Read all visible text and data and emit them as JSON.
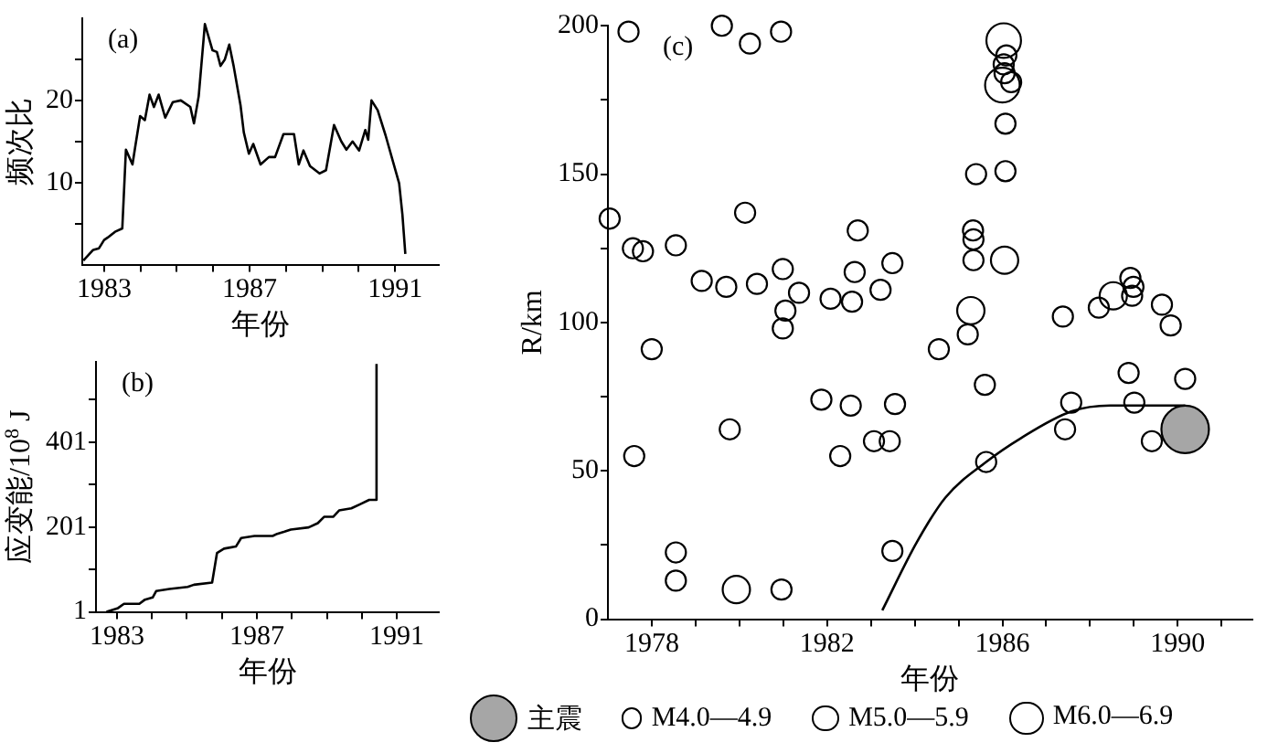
{
  "chart_data": [
    {
      "type": "line",
      "title": "(a)",
      "xlabel": "年份",
      "ylabel": "频次比",
      "grid": false,
      "xlim": [
        1982.4,
        1992.2
      ],
      "xticks": [
        1983,
        {
          "value": 1984,
          "label": null
        },
        {
          "value": 1985,
          "label": null
        },
        {
          "value": 1986,
          "label": null
        },
        1987,
        {
          "value": 1988,
          "label": null
        },
        {
          "value": 1989,
          "label": null
        },
        {
          "value": 1990,
          "label": null
        },
        1991
      ],
      "ylim": [
        0,
        30
      ],
      "yticks": [
        {
          "value": 5,
          "label": null
        },
        10,
        {
          "value": 15,
          "label": null
        },
        20,
        {
          "value": 25,
          "label": null
        }
      ],
      "series": [
        {
          "color": "#000000",
          "x": [
            1982.43,
            1982.7,
            1982.86,
            1983.0,
            1983.1,
            1983.3,
            1983.5,
            1983.6,
            1983.78,
            1983.85,
            1983.99,
            1984.12,
            1984.25,
            1984.37,
            1984.5,
            1984.68,
            1984.89,
            1985.11,
            1985.37,
            1985.47,
            1985.6,
            1985.77,
            1985.98,
            1986.1,
            1986.2,
            1986.32,
            1986.44,
            1986.56,
            1986.75,
            1986.84,
            1986.98,
            1987.1,
            1987.3,
            1987.53,
            1987.7,
            1987.93,
            1988.22,
            1988.35,
            1988.48,
            1988.66,
            1988.92,
            1989.1,
            1989.32,
            1989.52,
            1989.66,
            1989.83,
            1990.01,
            1990.18,
            1990.26,
            1990.35,
            1990.52,
            1990.74,
            1990.95,
            1991.11,
            1991.2,
            1991.28
          ],
          "values": [
            0.5,
            1.8,
            2,
            3,
            3.3,
            4,
            4.4,
            14,
            12.2,
            14.2,
            18.1,
            17.6,
            20.7,
            19.2,
            20.7,
            17.9,
            19.8,
            20,
            19.2,
            17.2,
            20.5,
            29.3,
            26.1,
            25.9,
            24.2,
            25,
            26.8,
            24.2,
            19.4,
            16.1,
            13.5,
            14.7,
            12.2,
            13.1,
            13.1,
            15.9,
            15.9,
            12.2,
            13.9,
            12,
            11.1,
            11.5,
            17,
            15,
            14,
            15,
            13.9,
            16.4,
            15.2,
            20,
            18.8,
            15.7,
            12.4,
            9.9,
            6.1,
            1.3
          ]
        }
      ]
    },
    {
      "type": "line",
      "title": "(b)",
      "xlabel": "年份",
      "ylabel": "应变能/10$^{8}$ J",
      "grid": false,
      "xlim": [
        1982.4,
        1992.2
      ],
      "xticks": [
        1983,
        {
          "value": 1984,
          "label": null
        },
        {
          "value": 1985,
          "label": null
        },
        {
          "value": 1986,
          "label": null
        },
        1987,
        {
          "value": 1988,
          "label": null
        },
        {
          "value": 1989,
          "label": null
        },
        {
          "value": 1990,
          "label": null
        },
        1991
      ],
      "ylim": [
        1,
        590
      ],
      "yticks": [
        1,
        {
          "value": 101,
          "label": null
        },
        201,
        {
          "value": 301,
          "label": null
        },
        401,
        {
          "value": 501,
          "label": null
        }
      ],
      "series": [
        {
          "color": "#000000",
          "x": [
            1982.7,
            1983.03,
            1983.2,
            1983.3,
            1983.64,
            1983.8,
            1984.02,
            1984.12,
            1984.5,
            1985.02,
            1985.2,
            1985.72,
            1985.86,
            1986.06,
            1986.4,
            1986.55,
            1986.93,
            1987.45,
            1987.58,
            1987.79,
            1987.97,
            1988.48,
            1988.74,
            1988.92,
            1989.18,
            1989.35,
            1989.7,
            1989.96,
            1990.21,
            1990.39,
            1990.42
          ],
          "values": [
            1,
            10,
            20,
            20,
            20,
            30,
            35,
            50,
            55,
            60,
            65,
            70,
            140,
            150,
            155,
            175,
            180,
            180,
            185,
            190,
            195,
            200,
            210,
            225,
            225,
            240,
            245,
            255,
            265,
            265,
            585
          ]
        }
      ]
    },
    {
      "type": "bubble",
      "title": "(c)",
      "xlabel": "年份",
      "ylabel": "R/km",
      "grid": false,
      "legend": "bottom",
      "xlim": [
        1977,
        1991.7
      ],
      "xticks": [
        1978,
        {
          "value": 1979,
          "label": null
        },
        {
          "value": 1980,
          "label": null
        },
        {
          "value": 1981,
          "label": null
        },
        1982,
        {
          "value": 1983,
          "label": null
        },
        {
          "value": 1984,
          "label": null
        },
        {
          "value": 1985,
          "label": null
        },
        1986,
        {
          "value": 1987,
          "label": null
        },
        {
          "value": 1988,
          "label": null
        },
        {
          "value": 1989,
          "label": null
        },
        1990,
        {
          "value": 1991,
          "label": null
        }
      ],
      "ylim": [
        0,
        200
      ],
      "yticks": [
        0,
        {
          "value": 25,
          "label": null
        },
        50,
        {
          "value": 75,
          "label": null
        },
        100,
        {
          "value": 125,
          "label": null
        },
        150,
        {
          "value": 175,
          "label": null
        },
        200
      ],
      "series": [
        {
          "name": "主震",
          "color": "#a6a6a6",
          "x": [
            1990.17
          ],
          "values": [
            64
          ],
          "sizes": [
            1
          ]
        },
        {
          "name": "M4.0—4.9",
          "color": "#000000",
          "x": [
            1979.6,
            1977.47,
            1980.24,
            1980.95,
            1977.04,
            1977.57,
            1977.8,
            1978.55,
            1980.13,
            1979.14,
            1979.7,
            1980.4,
            1980.99,
            1981.36,
            1981.05,
            1980.99,
            1978.0,
            1982.08,
            1982.57,
            1982.63,
            1982.7,
            1981.87,
            1982.54,
            1979.78,
            1977.6,
            1982.3,
            1978.55,
            1978.55,
            1980.96,
            1986.09,
            1986.03,
            1986.05,
            1986.2,
            1986.07,
            1986.07,
            1985.4,
            1985.33,
            1985.34,
            1985.34,
            1983.49,
            1983.22,
            1985.21,
            1984.55,
            1985.6,
            1983.55,
            1983.07,
            1983.43,
            1985.63,
            1983.49,
            1987.38,
            1987.57,
            1987.43,
            1988.2,
            1988.92,
            1988.99,
            1988.96,
            1989.64,
            1989.84,
            1988.88,
            1989.01,
            1989.41,
            1990.17
          ],
          "values": [
            200,
            198,
            194,
            198,
            135,
            125,
            124,
            126,
            137,
            114,
            112,
            113,
            118,
            110,
            104,
            98,
            91,
            108,
            107,
            117,
            131,
            74,
            72,
            64,
            55,
            55,
            22.5,
            13,
            10,
            190,
            187,
            184,
            181,
            167,
            151,
            150,
            131,
            128,
            121,
            120,
            111,
            96,
            91,
            79,
            72.5,
            60,
            60,
            53,
            23,
            102,
            73,
            64,
            105,
            115,
            112,
            109,
            106,
            99,
            83,
            73,
            60,
            81
          ],
          "sizes": [
            0.18,
            0.18,
            0.18,
            0.18,
            0.18,
            0.18,
            0.18,
            0.18,
            0.18,
            0.18,
            0.18,
            0.18,
            0.18,
            0.18,
            0.18,
            0.18,
            0.18,
            0.18,
            0.18,
            0.18,
            0.18,
            0.18,
            0.18,
            0.18,
            0.18,
            0.18,
            0.18,
            0.18,
            0.18,
            0.18,
            0.18,
            0.18,
            0.18,
            0.18,
            0.18,
            0.18,
            0.18,
            0.18,
            0.18,
            0.18,
            0.18,
            0.18,
            0.18,
            0.18,
            0.18,
            0.18,
            0.18,
            0.18,
            0.18,
            0.18,
            0.18,
            0.18,
            0.18,
            0.18,
            0.18,
            0.18,
            0.18,
            0.18,
            0.18,
            0.18,
            0.18,
            0.18
          ]
        },
        {
          "name": "M5.0—5.9",
          "color": "#000000",
          "x": [
            1979.93,
            1985.28,
            1986.05,
            1988.53
          ],
          "values": [
            10,
            104,
            121,
            109
          ],
          "sizes": [
            0.33,
            0.33,
            0.33,
            0.33
          ]
        },
        {
          "name": "M6.0—6.9",
          "color": "#000000",
          "x": [
            1986.03,
            1986.0
          ],
          "values": [
            195,
            180
          ],
          "sizes": [
            0.53,
            0.53
          ]
        },
        {
          "type": "line",
          "color": "#000000",
          "x": [
            1983.26,
            1984.05,
            1984.7,
            1985.63,
            1986.42,
            1987.57,
            1988.46,
            1990.17
          ],
          "values": [
            3,
            26,
            41,
            53,
            61,
            70,
            72,
            72
          ]
        }
      ]
    }
  ]
}
